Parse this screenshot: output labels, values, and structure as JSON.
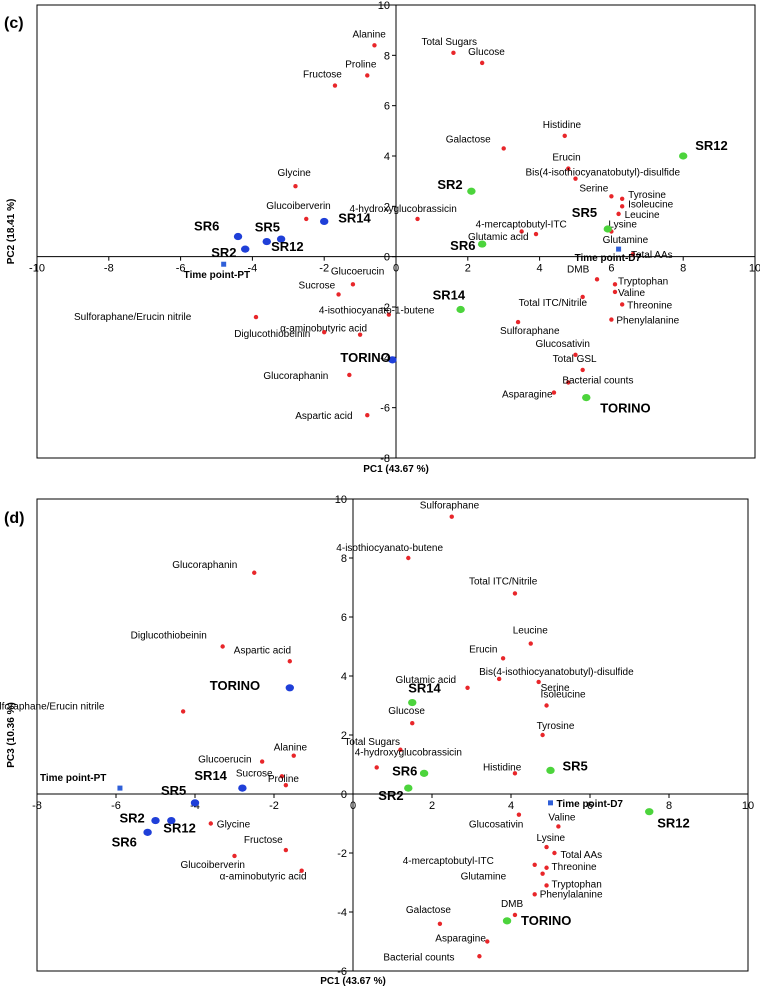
{
  "chart_data": [
    {
      "type": "scatter",
      "panel_label": "(c)",
      "xlabel": "PC1 (43.67 %)",
      "ylabel": "PC2 (18.41 %)",
      "xlim": [
        -10,
        10
      ],
      "ylim": [
        -8,
        10
      ],
      "xticks": [
        "-10",
        "-8",
        "-6",
        "-4",
        "-2",
        "0",
        "2",
        "4",
        "6",
        "8",
        "10"
      ],
      "yticks": [
        "-8",
        "-6",
        "-4",
        "-2",
        "0",
        "2",
        "4",
        "6",
        "8",
        "10"
      ],
      "variables": [
        {
          "label": "Alanine",
          "x": -0.6,
          "y": 8.4
        },
        {
          "label": "Total Sugars",
          "x": 1.6,
          "y": 8.1
        },
        {
          "label": "Glucose",
          "x": 2.4,
          "y": 7.7
        },
        {
          "label": "Proline",
          "x": -0.8,
          "y": 7.2
        },
        {
          "label": "Fructose",
          "x": -1.7,
          "y": 6.8
        },
        {
          "label": "Histidine",
          "x": 4.7,
          "y": 4.8
        },
        {
          "label": "Galactose",
          "x": 3.0,
          "y": 4.3
        },
        {
          "label": "Erucin",
          "x": 4.8,
          "y": 3.5
        },
        {
          "label": "Bis(4-isothiocyanatobutyl)-disulfide",
          "x": 5.0,
          "y": 3.1
        },
        {
          "label": "Serine",
          "x": 6.0,
          "y": 2.4
        },
        {
          "label": "Tyrosine",
          "x": 6.3,
          "y": 2.3
        },
        {
          "label": "Isoleucine",
          "x": 6.3,
          "y": 2.0
        },
        {
          "label": "Leucine",
          "x": 6.2,
          "y": 1.7
        },
        {
          "label": "Glycine",
          "x": -2.8,
          "y": 2.8
        },
        {
          "label": "Glucoiberverin",
          "x": -2.5,
          "y": 1.5
        },
        {
          "label": "4-hydroxyglucobrassicin",
          "x": 0.6,
          "y": 1.5
        },
        {
          "label": "4-mercaptobutyl-ITC",
          "x": 3.5,
          "y": 1.0
        },
        {
          "label": "Glutamic acid",
          "x": 3.9,
          "y": 0.9
        },
        {
          "label": "Lysine",
          "x": 6.0,
          "y": 1.0
        },
        {
          "label": "Glutamine",
          "x": 6.2,
          "y": 0.3
        },
        {
          "label": "Total AAs",
          "x": 6.6,
          "y": 0.1
        },
        {
          "label": "DMB",
          "x": 5.6,
          "y": -0.9
        },
        {
          "label": "Tryptophan",
          "x": 6.1,
          "y": -1.1
        },
        {
          "label": "Valine",
          "x": 6.1,
          "y": -1.4
        },
        {
          "label": "Threonine",
          "x": 6.3,
          "y": -1.9
        },
        {
          "label": "Phenylalanine",
          "x": 6.0,
          "y": -2.5
        },
        {
          "label": "Total ITC/Nitrile",
          "x": 5.2,
          "y": -1.6
        },
        {
          "label": "Sulforaphane",
          "x": 3.4,
          "y": -2.6
        },
        {
          "label": "Glucoerucin",
          "x": -1.2,
          "y": -1.1
        },
        {
          "label": "Sucrose",
          "x": -1.6,
          "y": -1.5
        },
        {
          "label": "4-isothiocyanato-1-butene",
          "x": -0.2,
          "y": -2.3
        },
        {
          "label": "Sulforaphane/Erucin nitrile",
          "x": -3.9,
          "y": -2.4
        },
        {
          "label": "α-aminobutyric acid",
          "x": -1.0,
          "y": -3.1
        },
        {
          "label": "Diglucothiobeinin",
          "x": -2.0,
          "y": -3.0
        },
        {
          "label": "Glucosativin",
          "x": 5.0,
          "y": -3.9
        },
        {
          "label": "Total GSL",
          "x": 5.2,
          "y": -4.5
        },
        {
          "label": "Glucoraphanin",
          "x": -1.3,
          "y": -4.7
        },
        {
          "label": "Bacterial counts",
          "x": 4.8,
          "y": -5.0
        },
        {
          "label": "Asparagine",
          "x": 4.4,
          "y": -5.4
        },
        {
          "label": "Aspartic acid",
          "x": -0.8,
          "y": -6.3
        }
      ],
      "samples_PT": [
        {
          "label": "SR6",
          "x": -4.4,
          "y": 0.8
        },
        {
          "label": "SR2",
          "x": -4.2,
          "y": 0.3
        },
        {
          "label": "SR5",
          "x": -3.6,
          "y": 0.6
        },
        {
          "label": "SR12",
          "x": -3.2,
          "y": 0.7
        },
        {
          "label": "SR14",
          "x": -2.0,
          "y": 1.4
        },
        {
          "label": "TORINO",
          "x": -0.1,
          "y": -4.1
        }
      ],
      "samples_D7": [
        {
          "label": "SR12",
          "x": 8.0,
          "y": 4.0
        },
        {
          "label": "SR2",
          "x": 2.1,
          "y": 2.6
        },
        {
          "label": "SR6",
          "x": 2.4,
          "y": 0.5
        },
        {
          "label": "SR5",
          "x": 5.9,
          "y": 1.1
        },
        {
          "label": "SR14",
          "x": 1.8,
          "y": -2.1
        },
        {
          "label": "TORINO",
          "x": 5.3,
          "y": -5.6
        }
      ],
      "time_points": [
        {
          "label": "Time point-PT",
          "x": -4.8,
          "y": -0.3
        },
        {
          "label": "Time point-D7",
          "x": 6.2,
          "y": 0.3
        }
      ]
    },
    {
      "type": "scatter",
      "panel_label": "(d)",
      "xlabel": "PC1 (43.67 %)",
      "ylabel": "PC3 (10.36 %)",
      "xlim": [
        -8,
        10
      ],
      "ylim": [
        -6,
        10
      ],
      "xticks": [
        "-8",
        "-6",
        "-4",
        "-2",
        "0",
        "2",
        "4",
        "6",
        "8",
        "10"
      ],
      "yticks": [
        "-6",
        "-4",
        "-2",
        "0",
        "2",
        "4",
        "6",
        "8",
        "10"
      ],
      "variables": [
        {
          "label": "Sulforaphane",
          "x": 2.5,
          "y": 9.4
        },
        {
          "label": "4-isothiocyanato-butene",
          "x": 1.4,
          "y": 8.0
        },
        {
          "label": "Glucoraphanin",
          "x": -2.5,
          "y": 7.5
        },
        {
          "label": "Total ITC/Nitrile",
          "x": 4.1,
          "y": 6.8
        },
        {
          "label": "Leucine",
          "x": 4.5,
          "y": 5.1
        },
        {
          "label": "Erucin",
          "x": 3.8,
          "y": 4.6
        },
        {
          "label": "Diglucothiobeinin",
          "x": -3.3,
          "y": 5.0
        },
        {
          "label": "Aspartic acid",
          "x": -1.6,
          "y": 4.5
        },
        {
          "label": "Bis(4-isothiocyanatobutyl)-disulfide",
          "x": 3.7,
          "y": 3.9
        },
        {
          "label": "Serine",
          "x": 4.7,
          "y": 3.8
        },
        {
          "label": "Glutamic acid",
          "x": 2.9,
          "y": 3.6
        },
        {
          "label": "Isoleucine",
          "x": 4.9,
          "y": 3.0
        },
        {
          "label": "Sulforaphane/Erucin nitrile",
          "x": -4.3,
          "y": 2.8
        },
        {
          "label": "Glucose",
          "x": 1.5,
          "y": 2.4
        },
        {
          "label": "Tyrosine",
          "x": 4.8,
          "y": 2.0
        },
        {
          "label": "Total Sugars",
          "x": 1.2,
          "y": 1.5
        },
        {
          "label": "4-hydroxyglucobrassicin",
          "x": 0.6,
          "y": 0.9
        },
        {
          "label": "Alanine",
          "x": -1.5,
          "y": 1.3
        },
        {
          "label": "Glucoerucin",
          "x": -2.3,
          "y": 1.1
        },
        {
          "label": "Sucrose",
          "x": -1.8,
          "y": 0.6
        },
        {
          "label": "Proline",
          "x": -1.7,
          "y": 0.3
        },
        {
          "label": "Histidine",
          "x": 4.1,
          "y": 0.7
        },
        {
          "label": "Glycine",
          "x": -3.6,
          "y": -1.0
        },
        {
          "label": "Glucosativin",
          "x": 4.2,
          "y": -0.7
        },
        {
          "label": "Valine",
          "x": 5.2,
          "y": -1.1
        },
        {
          "label": "Fructose",
          "x": -1.7,
          "y": -1.9
        },
        {
          "label": "Glucoiberverin",
          "x": -3.0,
          "y": -2.1
        },
        {
          "label": "α-aminobutyric acid",
          "x": -1.3,
          "y": -2.6
        },
        {
          "label": "Lysine",
          "x": 4.9,
          "y": -1.8
        },
        {
          "label": "Total AAs",
          "x": 5.1,
          "y": -2.0
        },
        {
          "label": "4-mercaptobutyl-ITC",
          "x": 4.6,
          "y": -2.4
        },
        {
          "label": "Threonine",
          "x": 4.9,
          "y": -2.5
        },
        {
          "label": "Glutamine",
          "x": 4.8,
          "y": -2.7
        },
        {
          "label": "Tryptophan",
          "x": 4.9,
          "y": -3.1
        },
        {
          "label": "Phenylalanine",
          "x": 4.6,
          "y": -3.4
        },
        {
          "label": "DMB",
          "x": 4.1,
          "y": -4.1
        },
        {
          "label": "Galactose",
          "x": 2.2,
          "y": -4.4
        },
        {
          "label": "Asparagine",
          "x": 3.4,
          "y": -5.0
        },
        {
          "label": "Bacterial counts",
          "x": 3.2,
          "y": -5.5
        }
      ],
      "samples_PT": [
        {
          "label": "SR14",
          "x": -2.8,
          "y": 0.2
        },
        {
          "label": "SR5",
          "x": -4.0,
          "y": -0.3
        },
        {
          "label": "SR2",
          "x": -5.0,
          "y": -0.9
        },
        {
          "label": "SR12",
          "x": -4.6,
          "y": -0.9
        },
        {
          "label": "SR6",
          "x": -5.2,
          "y": -1.3
        },
        {
          "label": "TORINO",
          "x": -1.6,
          "y": 3.6
        }
      ],
      "samples_D7": [
        {
          "label": "SR14",
          "x": 1.5,
          "y": 3.1
        },
        {
          "label": "SR6",
          "x": 1.8,
          "y": 0.7
        },
        {
          "label": "SR2",
          "x": 1.4,
          "y": 0.2
        },
        {
          "label": "SR5",
          "x": 5.0,
          "y": 0.8
        },
        {
          "label": "SR12",
          "x": 7.5,
          "y": -0.6
        },
        {
          "label": "TORINO",
          "x": 3.9,
          "y": -4.3
        }
      ],
      "time_points": [
        {
          "label": "Time point-PT",
          "x": -5.9,
          "y": 0.2
        },
        {
          "label": "Time point-D7",
          "x": 5.0,
          "y": -0.3
        }
      ]
    }
  ],
  "colors": {
    "variable": "#e8262a",
    "sample_PT": "#1f3fd8",
    "sample_D7": "#4cd43c",
    "time_point": "#2f5fd8",
    "axis": "#000000"
  }
}
